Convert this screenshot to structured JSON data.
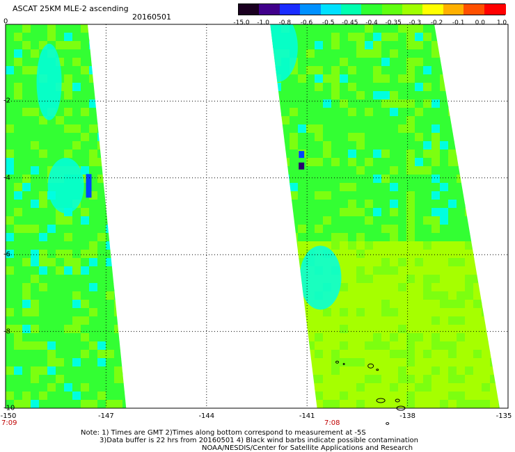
{
  "header": {
    "title": "ASCAT 25KM MLE-2 ascending",
    "date": "20160501"
  },
  "colorbar": {
    "labels": [
      "-15.0",
      "-1.0",
      "-0.8",
      "-0.6",
      "-0.5",
      "-0.45",
      "-0.4",
      "-0.35",
      "-0.3",
      "-0.2",
      "-0.1",
      "0.0",
      "1.0"
    ],
    "colors": [
      "#1a0020",
      "#40008a",
      "#1a2cff",
      "#0090ff",
      "#00e0ff",
      "#00ffb0",
      "#30ff30",
      "#60ff10",
      "#a0ff00",
      "#ffff00",
      "#ffb000",
      "#ff5000",
      "#ff0000"
    ]
  },
  "axes": {
    "x_ticks": [
      "-150",
      "-147",
      "-144",
      "-141",
      "-138",
      "-135"
    ],
    "y_ticks": [
      "0",
      "-2",
      "-4",
      "-6",
      "-8",
      "-10"
    ]
  },
  "time_labels": {
    "left": "7:09",
    "right": "7:08"
  },
  "footer": {
    "line1": "Note: 1) Times are GMT 2)Times along bottom correspond to measurement at -5S",
    "line2": "3)Data buffer is 22 hrs from 20160501 4) Black wind barbs indicate possible contamination",
    "line3": "NOAA/NESDIS/Center for Satellite Applications and Research"
  },
  "map": {
    "palette": {
      "green": "#33ff33",
      "lime": "#7cff10",
      "yellow_green": "#a6ff00",
      "cyan": "#00ffe0",
      "aqua": "#00f0ff",
      "blue": "#0044ff",
      "dark_blue": "#2a0070",
      "land_outline": "#000000"
    },
    "swaths": [
      {
        "name": "left-swath",
        "lon_top_left": -150,
        "lon_top_right": -147.55,
        "lon_bottom_left": -150,
        "lon_bottom_right": -146.4
      },
      {
        "name": "right-swath",
        "lon_top_left": -142.1,
        "lon_top_right": -137.2,
        "lon_bottom_left": -140.7,
        "lon_bottom_right": -135.25
      }
    ]
  }
}
